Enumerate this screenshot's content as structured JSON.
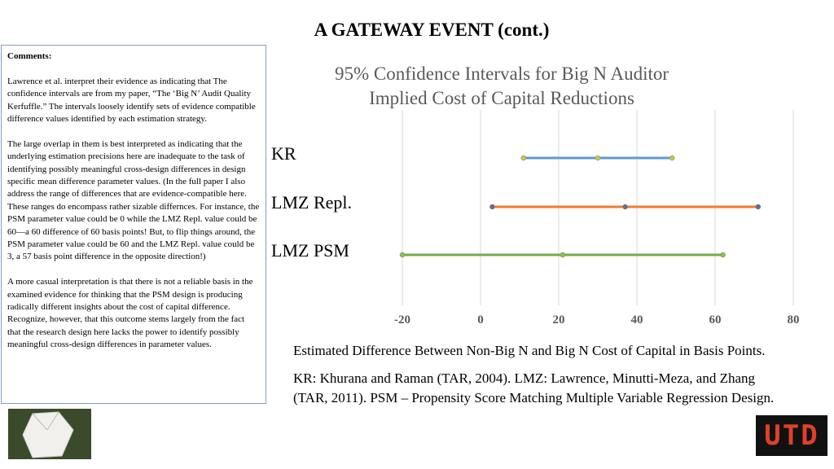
{
  "title": "A GATEWAY EVENT (cont.)",
  "comments": {
    "heading": "Comments:",
    "paragraphs": [
      "Lawrence et al. interpret their evidence as indicating that The confidence intervals are from my paper, “The ‘Big N’ Audit Quality Kerfuffle.” The intervals loosely identify sets of evidence compatible difference values identified by each estimation strategy.",
      "The large overlap in them is best interpreted as indicating that the underlying estimation precisions here are inadequate to the task of identifying possibly meaningful cross-design differences in design specific mean difference parameter values. (In the full paper I also address the range of differences that are evidence-compatible here. These ranges do encompass rather sizable differnces. For instance, the PSM parameter value could be 0 while the LMZ Repl. value could be 60—a 60 difference of 60 basis points! But, to flip things around, the PSM parameter value could be 60 and the LMZ Repl. value could be 3, a 57 basis point difference in the opposite direction!)",
      "A more casual interpretation is that there is not a reliable basis in the examined evidence for thinking that the PSM design is producing radically different insights about the cost of capital difference. Recognize, however, that this outcome stems largely from the fact that the research design here lacks the power to identify possibly meaningful cross-design differences in parameter values."
    ]
  },
  "chart_data": {
    "type": "interval",
    "title": "95% Confidence Intervals for Big N Auditor Implied Cost of Capital Reductions",
    "x_label": "Estimated Difference Between Non-Big N and Big N Cost of Capital in Basis Points.",
    "categories": [
      "KR",
      "LMZ Repl.",
      "LMZ PSM"
    ],
    "series": [
      {
        "name": "Lower",
        "values": [
          11,
          3,
          -20
        ]
      },
      {
        "name": "Estimate",
        "values": [
          30,
          37,
          21
        ]
      },
      {
        "name": "Upper",
        "values": [
          49,
          71,
          62
        ]
      }
    ],
    "colors": [
      "#5b9bd5",
      "#ed7d31",
      "#70ad47"
    ],
    "marker_colors": [
      "#c9c84a",
      "#6e6a8a",
      "#8fbd4f"
    ],
    "xlim": [
      -20,
      80
    ],
    "xticks": [
      -20,
      0,
      20,
      40,
      60,
      80
    ],
    "grid": true
  },
  "note": "KR: Khurana and Raman (TAR, 2004).  LMZ: Lawrence, Minutti-Meza, and Zhang (TAR, 2011). PSM – Propensity Score Matching Multiple Variable Regression Design.",
  "logo": "UTD"
}
